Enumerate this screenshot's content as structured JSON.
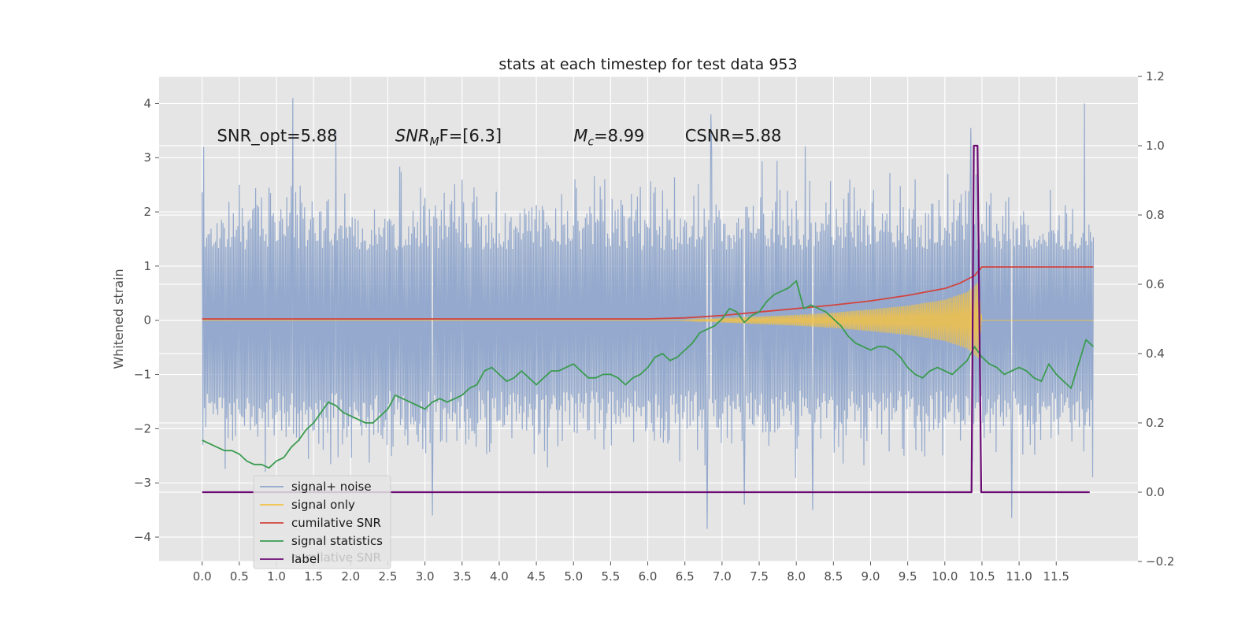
{
  "chart_data": {
    "type": "line",
    "title": "stats at each timestep for test data 953",
    "ylabel": "Whitened strain",
    "xlim": [
      -0.58,
      12.6
    ],
    "ylim": [
      -4.45,
      4.5
    ],
    "y2lim": [
      -0.2,
      1.2
    ],
    "x_ticks": [
      "0.0",
      "0.5",
      "1.0",
      "1.5",
      "2.0",
      "2.5",
      "3.0",
      "3.5",
      "4.0",
      "4.5",
      "5.0",
      "5.5",
      "6.0",
      "6.5",
      "7.0",
      "7.5",
      "8.0",
      "8.5",
      "9.0",
      "9.5",
      "10.0",
      "10.5",
      "11.0",
      "11.5"
    ],
    "y_ticks": [
      "4",
      "3",
      "2",
      "1",
      "0",
      "−1",
      "−2",
      "−3",
      "−4"
    ],
    "y2_ticks": [
      "1.2",
      "1.0",
      "0.8",
      "0.6",
      "0.4",
      "0.2",
      "0.0",
      "−0.2"
    ],
    "grid": true,
    "annotations": [
      {
        "text": "SNR_opt=5.88",
        "x": 0.2,
        "y": 3.3
      },
      {
        "pre": "SNR",
        "sub": "M",
        "post": "F=[6.3]",
        "x": 2.6,
        "y": 3.3
      },
      {
        "pre": "M",
        "sub": "c",
        "post": "=8.99",
        "x": 5.0,
        "y": 3.3
      },
      {
        "text": "CSNR=5.88",
        "x": 6.5,
        "y": 3.3
      }
    ],
    "legend_position": "lower-left",
    "legend": [
      {
        "label": "signal+ noise",
        "color": "#8fa5cb"
      },
      {
        "label": "signal only",
        "color": "#f2c247"
      },
      {
        "label": "cumilative SNR",
        "color": "#d1443f"
      },
      {
        "label": "signal statistics",
        "color": "#3a9b50"
      },
      {
        "label": "label",
        "color": "#6b0a73"
      }
    ],
    "legend_ghost_text": "cumilative SNR",
    "series": [
      {
        "name": "signal+ noise",
        "axis": "left",
        "color": "#8fa5cb",
        "x_range": [
          0.0,
          12.0
        ],
        "amplitude_typical": 1.9,
        "peaks": [
          {
            "x": 0.02,
            "y": 3.2
          },
          {
            "x": 1.22,
            "y": 4.1
          },
          {
            "x": 1.8,
            "y": 3.5
          },
          {
            "x": 6.02,
            "y": 1.7
          },
          {
            "x": 6.8,
            "y": -3.85
          },
          {
            "x": 6.85,
            "y": 3.8
          },
          {
            "x": 7.3,
            "y": -3.4
          },
          {
            "x": 8.22,
            "y": -3.5
          },
          {
            "x": 10.35,
            "y": 3.55
          },
          {
            "x": 10.9,
            "y": -3.65
          },
          {
            "x": 11.88,
            "y": 4.0
          },
          {
            "x": 3.1,
            "y": -3.6
          }
        ]
      },
      {
        "name": "signal only",
        "axis": "left",
        "color": "#f2c247",
        "envelope_x": [
          6.4,
          7.0,
          7.5,
          8.0,
          8.5,
          9.0,
          9.5,
          10.0,
          10.3,
          10.45,
          10.5,
          12.0
        ],
        "envelope_y": [
          0.0,
          0.04,
          0.07,
          0.1,
          0.14,
          0.2,
          0.27,
          0.38,
          0.52,
          0.7,
          0.0,
          0.0
        ]
      },
      {
        "name": "cumilative SNR",
        "axis": "right",
        "color": "#d1443f",
        "x": [
          0.0,
          6.0,
          6.5,
          7.0,
          7.5,
          8.0,
          8.5,
          9.0,
          9.5,
          10.0,
          10.2,
          10.4,
          10.5,
          12.0
        ],
        "y": [
          0.5,
          0.5,
          0.503,
          0.51,
          0.52,
          0.53,
          0.54,
          0.552,
          0.568,
          0.588,
          0.603,
          0.625,
          0.65,
          0.65
        ]
      },
      {
        "name": "signal statistics",
        "axis": "right",
        "color": "#3a9b50",
        "x": [
          0.0,
          0.1,
          0.2,
          0.3,
          0.4,
          0.5,
          0.6,
          0.7,
          0.8,
          0.9,
          1.0,
          1.1,
          1.2,
          1.3,
          1.4,
          1.5,
          1.6,
          1.7,
          1.8,
          1.9,
          2.0,
          2.1,
          2.2,
          2.3,
          2.4,
          2.5,
          2.6,
          2.7,
          2.8,
          2.9,
          3.0,
          3.1,
          3.2,
          3.3,
          3.4,
          3.5,
          3.6,
          3.7,
          3.8,
          3.9,
          4.0,
          4.1,
          4.2,
          4.3,
          4.4,
          4.5,
          4.6,
          4.7,
          4.8,
          4.9,
          5.0,
          5.1,
          5.2,
          5.3,
          5.4,
          5.5,
          5.6,
          5.7,
          5.8,
          5.9,
          6.0,
          6.1,
          6.2,
          6.3,
          6.4,
          6.5,
          6.6,
          6.7,
          6.8,
          6.9,
          7.0,
          7.1,
          7.2,
          7.3,
          7.4,
          7.5,
          7.6,
          7.7,
          7.8,
          7.9,
          8.0,
          8.1,
          8.2,
          8.3,
          8.4,
          8.5,
          8.6,
          8.7,
          8.8,
          8.9,
          9.0,
          9.1,
          9.2,
          9.3,
          9.4,
          9.5,
          9.6,
          9.7,
          9.8,
          9.9,
          10.0,
          10.1,
          10.2,
          10.3,
          10.4,
          10.5,
          10.6,
          10.7,
          10.8,
          10.9,
          11.0,
          11.1,
          11.2,
          11.3,
          11.4,
          11.5,
          11.6,
          11.7,
          11.8,
          11.9,
          12.0
        ],
        "y": [
          0.15,
          0.14,
          0.13,
          0.12,
          0.12,
          0.11,
          0.09,
          0.08,
          0.08,
          0.07,
          0.09,
          0.1,
          0.13,
          0.15,
          0.18,
          0.2,
          0.23,
          0.26,
          0.25,
          0.23,
          0.22,
          0.21,
          0.2,
          0.2,
          0.22,
          0.24,
          0.28,
          0.27,
          0.26,
          0.25,
          0.24,
          0.26,
          0.27,
          0.26,
          0.27,
          0.28,
          0.3,
          0.31,
          0.35,
          0.36,
          0.34,
          0.32,
          0.33,
          0.35,
          0.33,
          0.31,
          0.33,
          0.35,
          0.35,
          0.36,
          0.37,
          0.35,
          0.33,
          0.33,
          0.34,
          0.34,
          0.33,
          0.31,
          0.33,
          0.34,
          0.36,
          0.39,
          0.4,
          0.38,
          0.39,
          0.41,
          0.43,
          0.46,
          0.47,
          0.48,
          0.5,
          0.53,
          0.52,
          0.49,
          0.51,
          0.52,
          0.55,
          0.57,
          0.58,
          0.59,
          0.61,
          0.53,
          0.54,
          0.53,
          0.52,
          0.5,
          0.48,
          0.45,
          0.43,
          0.42,
          0.41,
          0.42,
          0.42,
          0.41,
          0.39,
          0.36,
          0.34,
          0.33,
          0.35,
          0.36,
          0.35,
          0.34,
          0.36,
          0.38,
          0.42,
          0.39,
          0.37,
          0.36,
          0.34,
          0.35,
          0.36,
          0.35,
          0.33,
          0.32,
          0.37,
          0.34,
          0.32,
          0.3,
          0.37,
          0.44,
          0.42
        ],
        "y_text_hint": "right axis"
      },
      {
        "name": "label",
        "axis": "right",
        "color": "#6b0a73",
        "x": [
          0.0,
          10.36,
          10.39,
          10.44,
          10.49,
          11.95
        ],
        "y": [
          0.0,
          0.0,
          1.0,
          1.0,
          0.0,
          0.0
        ]
      }
    ]
  }
}
